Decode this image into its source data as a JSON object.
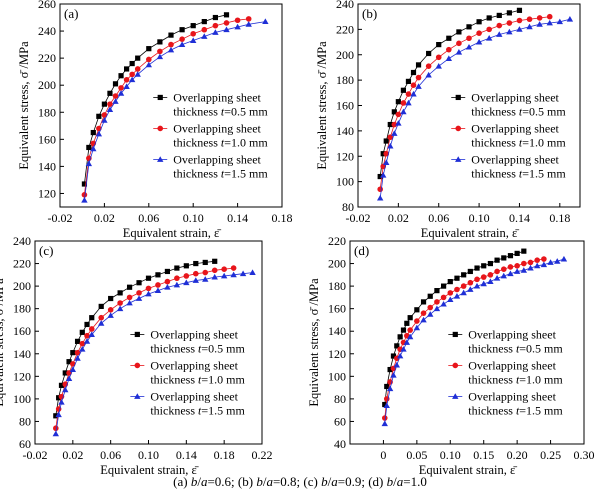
{
  "figure": {
    "caption_parts": [
      {
        "t": "(a) ",
        "i": false
      },
      {
        "t": "b",
        "i": true
      },
      {
        "t": "/",
        "i": false
      },
      {
        "t": "a",
        "i": true
      },
      {
        "t": "=0.6; ",
        "i": false
      },
      {
        "t": "(b) ",
        "i": false
      },
      {
        "t": "b",
        "i": true
      },
      {
        "t": "/",
        "i": false
      },
      {
        "t": "a",
        "i": true
      },
      {
        "t": "=0.8; ",
        "i": false
      },
      {
        "t": "(c) ",
        "i": false
      },
      {
        "t": "b",
        "i": true
      },
      {
        "t": "/",
        "i": false
      },
      {
        "t": "a",
        "i": true
      },
      {
        "t": "=0.9; ",
        "i": false
      },
      {
        "t": "(d) ",
        "i": false
      },
      {
        "t": "b",
        "i": true
      },
      {
        "t": "/",
        "i": false
      },
      {
        "t": "a",
        "i": true
      },
      {
        "t": "=1.0",
        "i": false
      }
    ]
  },
  "series_style": [
    {
      "color": "#000000",
      "marker": "square"
    },
    {
      "color": "#e8151b",
      "marker": "circle"
    },
    {
      "color": "#1f2fd6",
      "marker": "triangle"
    }
  ],
  "chart_data": [
    {
      "type": "line",
      "panel_label": "(a)",
      "xlabel": "Equivalent strain, ε̄",
      "ylabel": "Equivalent stress, σ̄ /MPa",
      "xlim": [
        -0.02,
        0.18
      ],
      "ylim": [
        110,
        260
      ],
      "xticks": [
        "-0.02",
        "0.02",
        "0.06",
        "0.10",
        "0.14",
        "0.18"
      ],
      "yticks": [
        "120",
        "140",
        "160",
        "180",
        "200",
        "220",
        "240",
        "260"
      ],
      "legend_position": "center-right",
      "series": [
        {
          "legend_line1": "Overlapping sheet",
          "legend_line2": "thickness t=0.5 mm",
          "x": [
            0.002,
            0.006,
            0.01,
            0.015,
            0.02,
            0.025,
            0.03,
            0.035,
            0.04,
            0.045,
            0.05,
            0.06,
            0.07,
            0.08,
            0.09,
            0.1,
            0.11,
            0.12,
            0.13
          ],
          "y": [
            127,
            154,
            165,
            177,
            186,
            194,
            201,
            207,
            212,
            216,
            220,
            227,
            232,
            237,
            241,
            244,
            247,
            250,
            252
          ]
        },
        {
          "legend_line1": "Overlapping sheet",
          "legend_line2": "thickness t=1.0 mm",
          "x": [
            0.002,
            0.006,
            0.01,
            0.015,
            0.02,
            0.025,
            0.03,
            0.035,
            0.04,
            0.045,
            0.05,
            0.06,
            0.07,
            0.08,
            0.09,
            0.1,
            0.11,
            0.12,
            0.13,
            0.14,
            0.15
          ],
          "y": [
            119,
            146,
            157,
            168,
            178,
            186,
            192,
            198,
            204,
            208,
            212,
            219,
            225,
            230,
            234,
            238,
            241,
            244,
            246,
            248,
            249
          ]
        },
        {
          "legend_line1": "Overlapping sheet",
          "legend_line2": "thickness t=1.5 mm",
          "x": [
            0.002,
            0.006,
            0.01,
            0.015,
            0.02,
            0.025,
            0.03,
            0.035,
            0.04,
            0.045,
            0.05,
            0.06,
            0.07,
            0.08,
            0.09,
            0.1,
            0.11,
            0.12,
            0.13,
            0.14,
            0.15,
            0.165
          ],
          "y": [
            115,
            142,
            153,
            164,
            174,
            182,
            188,
            194,
            199,
            204,
            208,
            215,
            221,
            226,
            230,
            233,
            236,
            239,
            241,
            243,
            245,
            247
          ]
        }
      ]
    },
    {
      "type": "line",
      "panel_label": "(b)",
      "xlabel": "Equivalent strain, ε̄",
      "ylabel": "Equivalent stress, σ̄ /MPa",
      "xlim": [
        -0.02,
        0.2
      ],
      "ylim": [
        80,
        240
      ],
      "xticks": [
        "-0.02",
        "0.02",
        "0.06",
        "0.10",
        "0.14",
        "0.18"
      ],
      "yticks": [
        "80",
        "100",
        "120",
        "140",
        "160",
        "180",
        "200",
        "220",
        "240"
      ],
      "legend_position": "center-right",
      "series": [
        {
          "legend_line1": "Overlapping sheet",
          "legend_line2": "thickness t=0.5 mm",
          "x": [
            0.002,
            0.005,
            0.008,
            0.012,
            0.016,
            0.02,
            0.025,
            0.03,
            0.035,
            0.04,
            0.05,
            0.06,
            0.07,
            0.08,
            0.09,
            0.1,
            0.11,
            0.12,
            0.13,
            0.14
          ],
          "y": [
            104,
            122,
            132,
            145,
            155,
            163,
            172,
            179,
            186,
            192,
            201,
            208,
            213,
            218,
            222,
            226,
            229,
            231,
            233,
            235
          ]
        },
        {
          "legend_line1": "Overlapping sheet",
          "legend_line2": "thickness t=1.0 mm",
          "x": [
            0.002,
            0.005,
            0.008,
            0.012,
            0.016,
            0.02,
            0.025,
            0.03,
            0.035,
            0.04,
            0.05,
            0.06,
            0.07,
            0.08,
            0.09,
            0.1,
            0.11,
            0.12,
            0.13,
            0.14,
            0.15,
            0.16,
            0.17
          ],
          "y": [
            94,
            112,
            122,
            135,
            145,
            153,
            162,
            169,
            176,
            182,
            191,
            198,
            204,
            209,
            213,
            217,
            220,
            223,
            225,
            227,
            228,
            229,
            230
          ]
        },
        {
          "legend_line1": "Overlapping sheet",
          "legend_line2": "thickness t=1.5 mm",
          "x": [
            0.002,
            0.005,
            0.008,
            0.012,
            0.016,
            0.02,
            0.025,
            0.03,
            0.035,
            0.04,
            0.05,
            0.06,
            0.07,
            0.08,
            0.09,
            0.1,
            0.11,
            0.12,
            0.13,
            0.14,
            0.15,
            0.16,
            0.17,
            0.18,
            0.19
          ],
          "y": [
            87,
            105,
            115,
            128,
            138,
            146,
            155,
            162,
            169,
            175,
            184,
            191,
            197,
            202,
            206,
            210,
            213,
            216,
            218,
            220,
            222,
            224,
            225,
            226,
            228
          ]
        }
      ]
    },
    {
      "type": "line",
      "panel_label": "(c)",
      "xlabel": "Equivalent strain, ε̄",
      "ylabel": "Equivalent stress, σ̄ /MPa",
      "xlim": [
        -0.02,
        0.22
      ],
      "ylim": [
        60,
        240
      ],
      "xticks": [
        "-0.02",
        "0.02",
        "0.06",
        "0.10",
        "0.14",
        "0.18",
        "0.22"
      ],
      "yticks": [
        "60",
        "80",
        "100",
        "120",
        "140",
        "160",
        "180",
        "200",
        "220",
        "240"
      ],
      "legend_position": "center-right",
      "series": [
        {
          "legend_line1": "Overlapping sheet",
          "legend_line2": "thickness t=0.5 mm",
          "x": [
            0.002,
            0.005,
            0.008,
            0.012,
            0.016,
            0.02,
            0.025,
            0.03,
            0.035,
            0.04,
            0.05,
            0.06,
            0.07,
            0.08,
            0.09,
            0.1,
            0.11,
            0.12,
            0.13,
            0.14,
            0.15,
            0.16,
            0.17
          ],
          "y": [
            85,
            101,
            112,
            123,
            133,
            141,
            151,
            159,
            166,
            172,
            182,
            189,
            194,
            199,
            203,
            207,
            210,
            213,
            216,
            218,
            220,
            221,
            222
          ]
        },
        {
          "legend_line1": "Overlapping sheet",
          "legend_line2": "thickness t=1.0 mm",
          "x": [
            0.002,
            0.005,
            0.008,
            0.012,
            0.016,
            0.02,
            0.025,
            0.03,
            0.035,
            0.04,
            0.05,
            0.06,
            0.07,
            0.08,
            0.09,
            0.1,
            0.11,
            0.12,
            0.13,
            0.14,
            0.15,
            0.16,
            0.17,
            0.18,
            0.19
          ],
          "y": [
            74,
            91,
            102,
            113,
            123,
            131,
            141,
            149,
            156,
            162,
            172,
            179,
            185,
            190,
            194,
            198,
            201,
            204,
            207,
            209,
            211,
            212,
            214,
            215,
            216
          ]
        },
        {
          "legend_line1": "Overlapping sheet",
          "legend_line2": "thickness t=1.5 mm",
          "x": [
            0.002,
            0.005,
            0.008,
            0.012,
            0.016,
            0.02,
            0.025,
            0.03,
            0.035,
            0.04,
            0.05,
            0.06,
            0.07,
            0.08,
            0.09,
            0.1,
            0.11,
            0.12,
            0.13,
            0.14,
            0.15,
            0.16,
            0.17,
            0.18,
            0.19,
            0.2,
            0.21
          ],
          "y": [
            69,
            86,
            97,
            108,
            118,
            126,
            136,
            144,
            151,
            157,
            167,
            174,
            180,
            185,
            189,
            193,
            196,
            199,
            201,
            203,
            205,
            206,
            208,
            209,
            210,
            211,
            212
          ]
        }
      ]
    },
    {
      "type": "line",
      "panel_label": "(d)",
      "xlabel": "Equivalent strain, ε̄",
      "ylabel": "Equivalent stress, σ̄ /MPa",
      "xlim": [
        -0.05,
        0.3
      ],
      "ylim": [
        40,
        220
      ],
      "xticks": [
        "0",
        "0.05",
        "0.10",
        "0.15",
        "0.20",
        "0.25",
        "0.30"
      ],
      "yticks": [
        "40",
        "60",
        "80",
        "100",
        "120",
        "140",
        "160",
        "180",
        "200",
        "220"
      ],
      "legend_position": "center-right",
      "series": [
        {
          "legend_line1": "Overlapping sheet",
          "legend_line2": "thickness t=0.5 mm",
          "x": [
            0.002,
            0.005,
            0.01,
            0.015,
            0.02,
            0.025,
            0.03,
            0.035,
            0.04,
            0.05,
            0.06,
            0.07,
            0.08,
            0.09,
            0.1,
            0.11,
            0.12,
            0.13,
            0.14,
            0.15,
            0.16,
            0.17,
            0.18,
            0.19,
            0.2,
            0.21
          ],
          "y": [
            75,
            91,
            106,
            118,
            127,
            135,
            141,
            147,
            152,
            159,
            166,
            171,
            176,
            180,
            184,
            187,
            190,
            193,
            196,
            198,
            200,
            203,
            205,
            207,
            209,
            211
          ]
        },
        {
          "legend_line1": "Overlapping sheet",
          "legend_line2": "thickness t=1.0 mm",
          "x": [
            0.002,
            0.005,
            0.01,
            0.015,
            0.02,
            0.025,
            0.03,
            0.035,
            0.04,
            0.05,
            0.06,
            0.07,
            0.08,
            0.09,
            0.1,
            0.11,
            0.12,
            0.13,
            0.14,
            0.15,
            0.16,
            0.17,
            0.18,
            0.19,
            0.2,
            0.21,
            0.22,
            0.23,
            0.24
          ],
          "y": [
            63,
            80,
            95,
            107,
            116,
            124,
            130,
            136,
            141,
            149,
            156,
            161,
            166,
            170,
            174,
            177,
            180,
            183,
            186,
            188,
            190,
            193,
            195,
            197,
            198,
            200,
            201,
            203,
            204
          ]
        },
        {
          "legend_line1": "Overlapping sheet",
          "legend_line2": "thickness t=1.5 mm",
          "x": [
            0.002,
            0.005,
            0.01,
            0.015,
            0.02,
            0.025,
            0.03,
            0.035,
            0.04,
            0.05,
            0.06,
            0.07,
            0.08,
            0.09,
            0.1,
            0.11,
            0.12,
            0.13,
            0.14,
            0.15,
            0.16,
            0.17,
            0.18,
            0.19,
            0.2,
            0.21,
            0.22,
            0.23,
            0.24,
            0.25,
            0.26,
            0.27
          ],
          "y": [
            58,
            74,
            89,
            101,
            110,
            118,
            124,
            130,
            135,
            143,
            150,
            155,
            160,
            164,
            168,
            171,
            174,
            177,
            180,
            182,
            184,
            187,
            189,
            191,
            193,
            194,
            196,
            198,
            199,
            201,
            202,
            204
          ]
        }
      ]
    }
  ]
}
